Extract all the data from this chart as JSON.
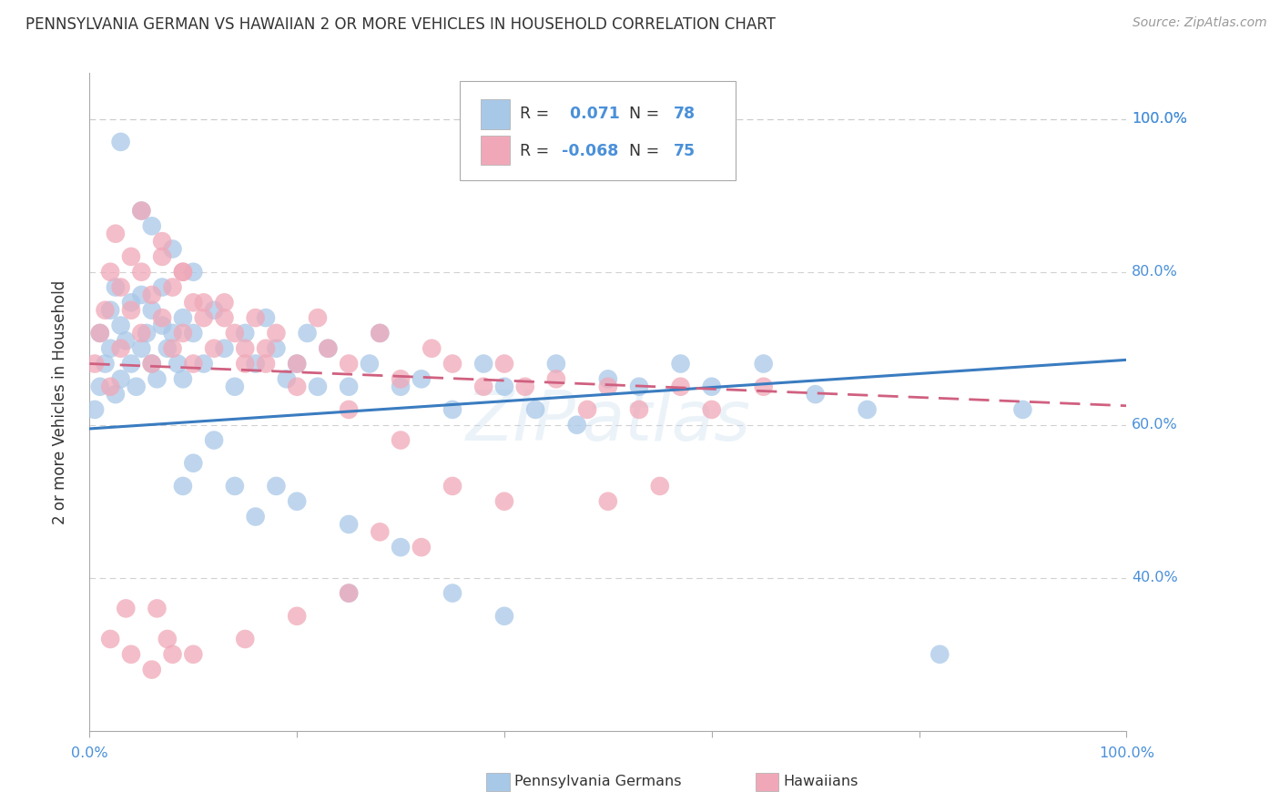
{
  "title": "PENNSYLVANIA GERMAN VS HAWAIIAN 2 OR MORE VEHICLES IN HOUSEHOLD CORRELATION CHART",
  "source": "Source: ZipAtlas.com",
  "ylabel": "2 or more Vehicles in Household",
  "color_blue": "#a8c8e8",
  "color_pink": "#f0a8b8",
  "line_blue": "#3a7cc0",
  "line_pink": "#d06080",
  "background": "#ffffff",
  "grid_color": "#cccccc",
  "tick_color": "#4a90d9",
  "xlim": [
    0.0,
    1.0
  ],
  "ylim": [
    0.2,
    1.06
  ],
  "yticks": [
    0.4,
    0.6,
    0.8,
    1.0
  ],
  "ytick_labels": [
    "40.0%",
    "60.0%",
    "80.0%",
    "100.0%"
  ],
  "r_blue": 0.071,
  "n_blue": 78,
  "r_pink": -0.068,
  "n_pink": 75,
  "blue_line_x0": 0.0,
  "blue_line_x1": 1.0,
  "blue_line_y0": 0.595,
  "blue_line_y1": 0.685,
  "pink_line_x0": 0.0,
  "pink_line_x1": 1.0,
  "pink_line_y0": 0.68,
  "pink_line_y1": 0.625,
  "seed": 17,
  "blue_x": [
    0.005,
    0.01,
    0.01,
    0.015,
    0.02,
    0.02,
    0.025,
    0.025,
    0.03,
    0.03,
    0.035,
    0.04,
    0.04,
    0.045,
    0.05,
    0.05,
    0.055,
    0.06,
    0.06,
    0.065,
    0.07,
    0.07,
    0.075,
    0.08,
    0.085,
    0.09,
    0.09,
    0.1,
    0.1,
    0.11,
    0.12,
    0.13,
    0.14,
    0.15,
    0.16,
    0.17,
    0.18,
    0.19,
    0.2,
    0.21,
    0.22,
    0.23,
    0.25,
    0.27,
    0.28,
    0.3,
    0.32,
    0.35,
    0.38,
    0.4,
    0.43,
    0.45,
    0.47,
    0.5,
    0.53,
    0.57,
    0.6,
    0.65,
    0.7,
    0.75,
    0.82,
    0.9,
    0.03,
    0.05,
    0.06,
    0.08,
    0.09,
    0.1,
    0.12,
    0.14,
    0.16,
    0.18,
    0.2,
    0.25,
    0.3,
    0.35,
    0.25,
    0.4
  ],
  "blue_y": [
    0.62,
    0.65,
    0.72,
    0.68,
    0.7,
    0.75,
    0.64,
    0.78,
    0.66,
    0.73,
    0.71,
    0.68,
    0.76,
    0.65,
    0.7,
    0.77,
    0.72,
    0.68,
    0.75,
    0.66,
    0.73,
    0.78,
    0.7,
    0.72,
    0.68,
    0.74,
    0.66,
    0.72,
    0.8,
    0.68,
    0.75,
    0.7,
    0.65,
    0.72,
    0.68,
    0.74,
    0.7,
    0.66,
    0.68,
    0.72,
    0.65,
    0.7,
    0.65,
    0.68,
    0.72,
    0.65,
    0.66,
    0.62,
    0.68,
    0.65,
    0.62,
    0.68,
    0.6,
    0.66,
    0.65,
    0.68,
    0.65,
    0.68,
    0.64,
    0.62,
    0.3,
    0.62,
    0.97,
    0.88,
    0.86,
    0.83,
    0.52,
    0.55,
    0.58,
    0.52,
    0.48,
    0.52,
    0.5,
    0.47,
    0.44,
    0.38,
    0.38,
    0.35
  ],
  "pink_x": [
    0.005,
    0.01,
    0.015,
    0.02,
    0.02,
    0.025,
    0.03,
    0.03,
    0.04,
    0.04,
    0.05,
    0.05,
    0.06,
    0.06,
    0.07,
    0.07,
    0.08,
    0.08,
    0.09,
    0.09,
    0.1,
    0.1,
    0.11,
    0.12,
    0.13,
    0.14,
    0.15,
    0.16,
    0.17,
    0.18,
    0.2,
    0.22,
    0.23,
    0.25,
    0.28,
    0.3,
    0.33,
    0.35,
    0.38,
    0.4,
    0.42,
    0.45,
    0.48,
    0.5,
    0.53,
    0.57,
    0.6,
    0.65,
    0.5,
    0.55,
    0.05,
    0.07,
    0.09,
    0.11,
    0.13,
    0.15,
    0.17,
    0.2,
    0.25,
    0.3,
    0.35,
    0.4,
    0.28,
    0.32,
    0.25,
    0.2,
    0.15,
    0.1,
    0.08,
    0.06,
    0.04,
    0.02,
    0.035,
    0.065,
    0.075
  ],
  "pink_y": [
    0.68,
    0.72,
    0.75,
    0.65,
    0.8,
    0.85,
    0.7,
    0.78,
    0.75,
    0.82,
    0.72,
    0.8,
    0.68,
    0.77,
    0.74,
    0.82,
    0.7,
    0.78,
    0.72,
    0.8,
    0.68,
    0.76,
    0.74,
    0.7,
    0.76,
    0.72,
    0.68,
    0.74,
    0.7,
    0.72,
    0.68,
    0.74,
    0.7,
    0.68,
    0.72,
    0.66,
    0.7,
    0.68,
    0.65,
    0.68,
    0.65,
    0.66,
    0.62,
    0.65,
    0.62,
    0.65,
    0.62,
    0.65,
    0.5,
    0.52,
    0.88,
    0.84,
    0.8,
    0.76,
    0.74,
    0.7,
    0.68,
    0.65,
    0.62,
    0.58,
    0.52,
    0.5,
    0.46,
    0.44,
    0.38,
    0.35,
    0.32,
    0.3,
    0.3,
    0.28,
    0.3,
    0.32,
    0.36,
    0.36,
    0.32
  ]
}
